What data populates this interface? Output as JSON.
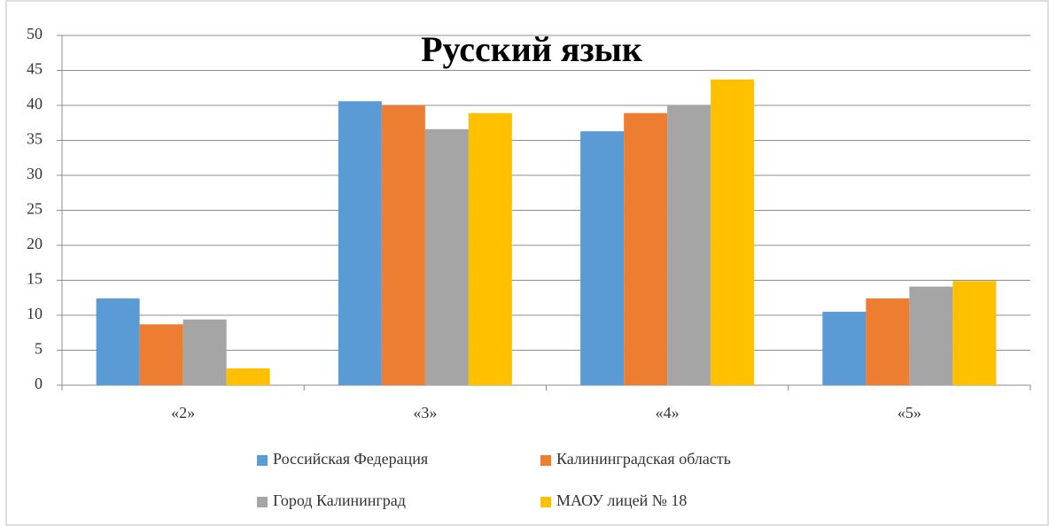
{
  "chart_data": {
    "type": "bar",
    "title": "Русский язык",
    "categories": [
      "«2»",
      "«3»",
      "«4»",
      "«5»"
    ],
    "series": [
      {
        "name": "Российская Федерация",
        "color": "#5b9bd5",
        "values": [
          12.4,
          40.6,
          36.3,
          10.5
        ]
      },
      {
        "name": "Калининградская область",
        "color": "#ed7d31",
        "values": [
          8.7,
          40.0,
          38.9,
          12.4
        ]
      },
      {
        "name": "Город Калининград",
        "color": "#a5a5a5",
        "values": [
          9.4,
          36.6,
          40.0,
          14.1
        ]
      },
      {
        "name": "МАОУ лицей № 18",
        "color": "#ffc000",
        "values": [
          2.4,
          38.9,
          43.7,
          14.9
        ]
      }
    ],
    "ylim": [
      0,
      50
    ],
    "yticks": [
      0,
      5,
      10,
      15,
      20,
      25,
      30,
      35,
      40,
      45,
      50
    ],
    "grid": true,
    "legend": "bottom"
  }
}
